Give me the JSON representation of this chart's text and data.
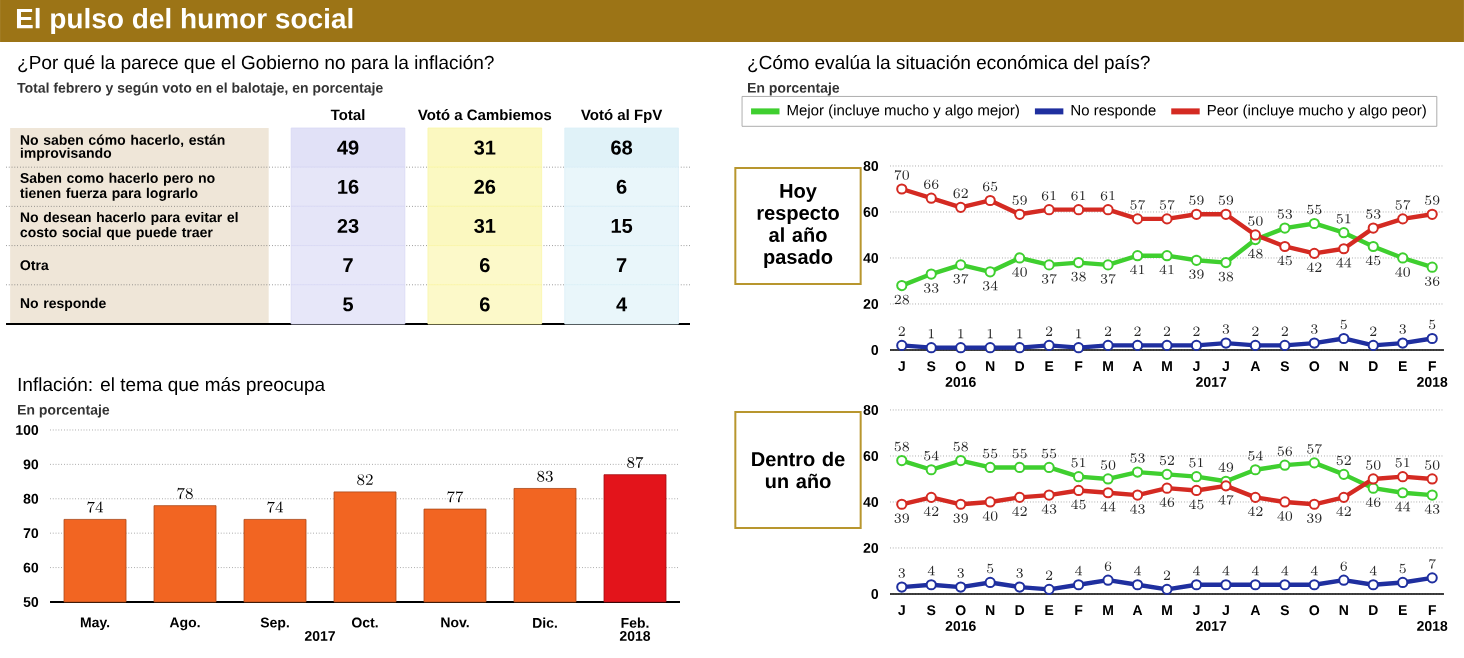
{
  "chart_data": [
    {
      "type": "other",
      "title": "El pulso del humor social"
    },
    {
      "type": "heatmap",
      "title": "¿Por qué la parece que el Gobierno no para la inflación?",
      "subtitle": "Total febrero y según voto en el balotaje, en porcentaje",
      "categories": [
        "Total",
        "Votó a Cambiemos",
        "Votó al FpV"
      ],
      "y_categories": [
        "No saben cómo hacerlo, están improvisando",
        "Saben como hacerlo pero no tienen fuerza para lograrlo",
        "No desean hacerlo para evitar el costo social que puede traer",
        "Otra",
        "No responde"
      ],
      "cells": [
        [
          49,
          31,
          68
        ],
        [
          16,
          26,
          6
        ],
        [
          23,
          31,
          15
        ],
        [
          7,
          6,
          7
        ],
        [
          5,
          6,
          4
        ]
      ],
      "cell_labels": [
        [
          "49",
          "31",
          "68"
        ],
        [
          "16",
          "26",
          "6"
        ],
        [
          "23",
          "31",
          "15"
        ],
        [
          "7",
          "6",
          "7"
        ],
        [
          "5",
          "6",
          "4"
        ]
      ]
    },
    {
      "type": "bar",
      "title": "Inflación: el tema que más preocupa",
      "subtitle": "En porcentaje",
      "categories": [
        "May.",
        "Ago.",
        "Sep.",
        "Oct.",
        "Nov.",
        "Dic.",
        "Feb."
      ],
      "values": [
        74,
        78,
        74,
        82,
        77,
        83,
        87
      ],
      "colors": [
        "#f26522",
        "#f26522",
        "#f26522",
        "#f26522",
        "#f26522",
        "#f26522",
        "#e3141b"
      ],
      "ylim": [
        50,
        100
      ],
      "yticks": [
        50,
        60,
        70,
        80,
        90,
        100
      ],
      "grid": "y",
      "data_labels": true,
      "annotations": [
        "2017",
        "2018"
      ]
    },
    {
      "type": "line",
      "title": "¿Cómo evalúa la situación económica del país?",
      "subtitle": "En porcentaje",
      "ylabel": "Hoy respecto al año pasado",
      "categories": [
        "J",
        "S",
        "O",
        "N",
        "D",
        "E",
        "F",
        "M",
        "A",
        "M",
        "J",
        "J",
        "A",
        "S",
        "O",
        "N",
        "D",
        "E",
        "F"
      ],
      "series": [
        {
          "name": "Mejor (incluye mucho y algo mejor)",
          "color": "#3fcf2f",
          "values": [
            28,
            33,
            37,
            34,
            40,
            37,
            38,
            37,
            41,
            41,
            39,
            38,
            48,
            53,
            55,
            51,
            45,
            40,
            36
          ]
        },
        {
          "name": "No responde",
          "color": "#1f2f9f",
          "values": [
            2,
            1,
            1,
            1,
            1,
            2,
            1,
            2,
            2,
            2,
            2,
            3,
            2,
            2,
            3,
            5,
            2,
            3,
            5
          ]
        },
        {
          "name": "Peor (incluye mucho y algo peor)",
          "color": "#d42a22",
          "values": [
            70,
            66,
            62,
            65,
            59,
            61,
            61,
            61,
            57,
            57,
            59,
            59,
            50,
            45,
            42,
            44,
            53,
            57,
            59
          ]
        }
      ],
      "ylim": [
        0,
        80
      ],
      "yticks": [
        0,
        20,
        40,
        60,
        80
      ],
      "grid": "y",
      "marker": "circle",
      "legend": "top",
      "data_labels": true,
      "annotations": [
        "2016",
        "2017",
        "2018"
      ]
    },
    {
      "type": "line",
      "ylabel": "Dentro de un año",
      "categories": [
        "J",
        "S",
        "O",
        "N",
        "D",
        "E",
        "F",
        "M",
        "A",
        "M",
        "J",
        "J",
        "A",
        "S",
        "O",
        "N",
        "D",
        "E",
        "F"
      ],
      "series": [
        {
          "color": "#3fcf2f",
          "values": [
            58,
            54,
            58,
            55,
            55,
            55,
            51,
            50,
            53,
            52,
            51,
            49,
            54,
            56,
            57,
            52,
            46,
            44,
            43
          ]
        },
        {
          "color": "#1f2f9f",
          "values": [
            3,
            4,
            3,
            5,
            3,
            2,
            4,
            6,
            4,
            2,
            4,
            4,
            4,
            4,
            4,
            6,
            4,
            5,
            7
          ]
        },
        {
          "color": "#d42a22",
          "values": [
            39,
            42,
            39,
            40,
            42,
            43,
            45,
            44,
            43,
            46,
            45,
            47,
            42,
            40,
            39,
            42,
            50,
            51,
            50
          ]
        }
      ],
      "ylim": [
        0,
        80
      ],
      "yticks": [
        0,
        20,
        40,
        60,
        80
      ],
      "grid": "y",
      "marker": "circle",
      "data_labels": true,
      "annotations": [
        "2016",
        "2017",
        "2018"
      ]
    }
  ]
}
